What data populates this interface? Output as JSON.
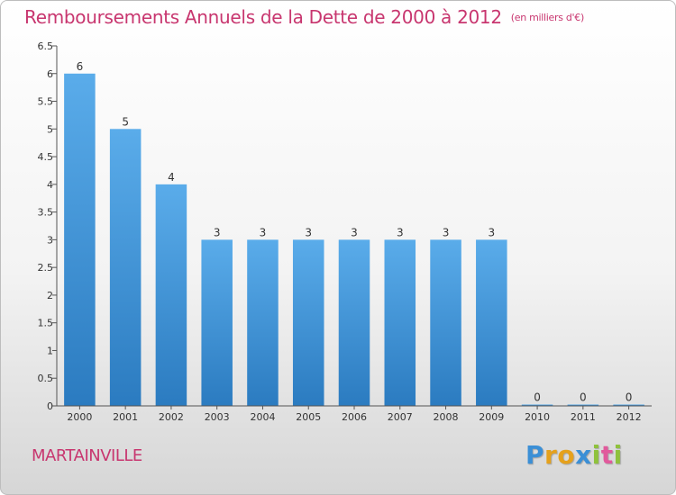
{
  "header": {
    "title": "Remboursements Annuels de la Dette de 2000 à 2012",
    "unit": "(en milliers d'€)"
  },
  "footer": {
    "place": "MARTAINVILLE",
    "logo": {
      "letters": [
        "P",
        "r",
        "o",
        "x",
        "i",
        "t",
        "i"
      ],
      "colors": [
        "#3b8fd6",
        "#e5a11c",
        "#e5a11c",
        "#3b8fd6",
        "#8fc23d",
        "#e15a9c",
        "#8fc23d"
      ]
    }
  },
  "colors": {
    "title": "#c8366f",
    "bar_light": "#5aacea",
    "bar_dark": "#2b7bc0",
    "axis": "#555555"
  },
  "chart_data": {
    "type": "bar",
    "title": "Remboursements Annuels de la Dette de 2000 à 2012",
    "categories": [
      "2000",
      "2001",
      "2002",
      "2003",
      "2004",
      "2005",
      "2006",
      "2007",
      "2008",
      "2009",
      "2010",
      "2011",
      "2012"
    ],
    "values": [
      6,
      5,
      4,
      3,
      3,
      3,
      3,
      3,
      3,
      3,
      0,
      0,
      0
    ],
    "value_labels": [
      "6",
      "5",
      "4",
      "3",
      "3",
      "3",
      "3",
      "3",
      "3",
      "3",
      "0",
      "0",
      "0"
    ],
    "yticks": [
      "0",
      "0.5",
      "1",
      "1.5",
      "2",
      "2.5",
      "3",
      "3.5",
      "4",
      "4.5",
      "5",
      "5.5",
      "6",
      "6.5"
    ],
    "ylim": [
      0,
      6.5
    ],
    "xlabel": "",
    "ylabel": "",
    "grid": false
  }
}
